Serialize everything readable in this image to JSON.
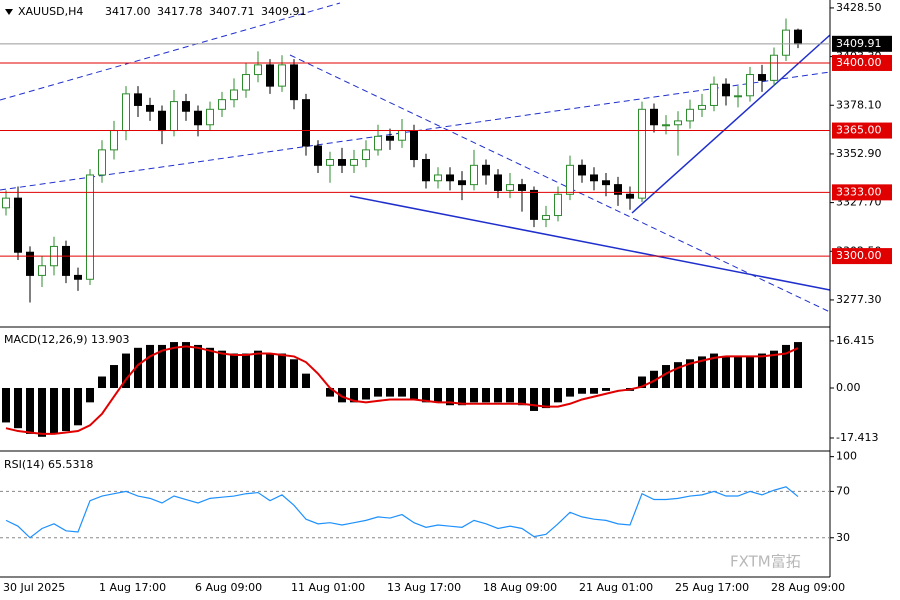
{
  "header": {
    "symbol": "XAUUSD,H4",
    "ohlc_labels": [
      "3417.00",
      "3417.78",
      "3407.71",
      "3409.91"
    ]
  },
  "watermark": "FXTM富拓",
  "chart_data": [
    {
      "type": "candlestick",
      "categories": [
        "30 Jul 2025",
        null,
        null,
        null,
        null,
        null,
        null,
        null,
        "1 Aug 17:00",
        null,
        null,
        null,
        null,
        null,
        null,
        null,
        "6 Aug 09:00",
        null,
        null,
        null,
        null,
        null,
        null,
        null,
        "11 Aug 01:00",
        null,
        null,
        null,
        null,
        null,
        null,
        null,
        "13 Aug 17:00",
        null,
        null,
        null,
        null,
        null,
        null,
        null,
        "18 Aug 09:00",
        null,
        null,
        null,
        null,
        null,
        null,
        null,
        "21 Aug 01:00",
        null,
        null,
        null,
        null,
        null,
        null,
        null,
        "25 Aug 17:00",
        null,
        null,
        null,
        null,
        null,
        null,
        null,
        "28 Aug 09:00",
        null,
        null
      ],
      "open": [
        3325,
        3330,
        3302,
        3290,
        3295,
        3305,
        3290,
        3288,
        3342,
        3355,
        3365,
        3384,
        3378,
        3375,
        3365,
        3380,
        3375,
        3368,
        3376,
        3381,
        3386,
        3394,
        3399,
        3388,
        3399,
        3381,
        3357,
        3347,
        3350,
        3347,
        3350,
        3355,
        3362,
        3360,
        3365,
        3350,
        3339,
        3342,
        3339,
        3337,
        3347,
        3342,
        3334,
        3337,
        3334,
        3319,
        3321,
        3332,
        3347,
        3342,
        3339,
        3337,
        3332,
        3330,
        3376,
        3368,
        3368,
        3370,
        3376,
        3378,
        3389,
        3383,
        3383,
        3394,
        3391,
        3404,
        3417
      ],
      "high": [
        3334,
        3336,
        3305,
        3300,
        3310,
        3308,
        3294,
        3345,
        3360,
        3370,
        3388,
        3388,
        3382,
        3378,
        3386,
        3384,
        3378,
        3380,
        3385,
        3392,
        3400,
        3406,
        3402,
        3404,
        3402,
        3384,
        3360,
        3354,
        3356,
        3355,
        3360,
        3368,
        3366,
        3371,
        3368,
        3353,
        3346,
        3346,
        3344,
        3355,
        3350,
        3345,
        3343,
        3340,
        3336,
        3326,
        3336,
        3352,
        3350,
        3346,
        3343,
        3341,
        3336,
        3380,
        3379,
        3373,
        3375,
        3381,
        3384,
        3393,
        3392,
        3388,
        3398,
        3399,
        3408,
        3423,
        3417.78
      ],
      "low": [
        3321,
        3298,
        3276,
        3284,
        3290,
        3286,
        3282,
        3285,
        3338,
        3350,
        3360,
        3372,
        3370,
        3358,
        3362,
        3370,
        3362,
        3365,
        3372,
        3377,
        3382,
        3390,
        3384,
        3385,
        3376,
        3352,
        3343,
        3338,
        3343,
        3343,
        3346,
        3352,
        3355,
        3356,
        3346,
        3335,
        3335,
        3334,
        3329,
        3334,
        3337,
        3330,
        3330,
        3323,
        3315,
        3315,
        3318,
        3329,
        3338,
        3334,
        3331,
        3326,
        3324,
        3328,
        3364,
        3363,
        3352,
        3366,
        3372,
        3375,
        3378,
        3377,
        3380,
        3385,
        3388,
        3401,
        3407.71
      ],
      "close": [
        3330,
        3302,
        3290,
        3295,
        3305,
        3290,
        3288,
        3342,
        3355,
        3365,
        3384,
        3378,
        3375,
        3365,
        3380,
        3375,
        3368,
        3376,
        3381,
        3386,
        3394,
        3399,
        3388,
        3399,
        3381,
        3357,
        3347,
        3350,
        3347,
        3350,
        3355,
        3362,
        3360,
        3365,
        3350,
        3339,
        3342,
        3339,
        3337,
        3347,
        3342,
        3334,
        3337,
        3334,
        3319,
        3321,
        3332,
        3347,
        3342,
        3339,
        3337,
        3332,
        3330,
        3376,
        3368,
        3368,
        3370,
        3376,
        3378,
        3389,
        3383,
        3383,
        3394,
        3391,
        3404,
        3417,
        3409.91
      ],
      "up_color": "#ffffff",
      "down_color": "#000000",
      "up_stroke": "#2e8b2e",
      "down_stroke": "#000000",
      "ylim": [
        3263.8,
        3432.6
      ],
      "yticks": [
        {
          "value": 3428.5,
          "label": "3428.50"
        },
        {
          "value": 3403.3,
          "label": "3403.30"
        },
        {
          "value": 3378.1,
          "label": "3378.10"
        },
        {
          "value": 3352.9,
          "label": "3352.90"
        },
        {
          "value": 3327.7,
          "label": "3327.70"
        },
        {
          "value": 3302.5,
          "label": "3302.50"
        },
        {
          "value": 3277.3,
          "label": "3277.30"
        }
      ],
      "levels": [
        {
          "value": 3400,
          "label": "3400.00"
        },
        {
          "value": 3365,
          "label": "3365.00"
        },
        {
          "value": 3333,
          "label": "3333.00"
        },
        {
          "value": 3300,
          "label": "3300.00"
        }
      ],
      "level_color": "#e00000",
      "last_price": 3409.91
    },
    {
      "type": "macd",
      "title": "MACD(12,26,9) 13.903",
      "histogram": [
        -12,
        -14,
        -16,
        -17,
        -16,
        -15,
        -13,
        -5,
        4,
        8,
        12,
        14,
        15,
        15,
        16,
        16,
        15,
        14,
        13,
        12,
        12,
        13,
        12,
        12,
        10,
        5,
        0,
        -3,
        -5,
        -5,
        -4,
        -3,
        -3,
        -3,
        -4,
        -5,
        -5,
        -6,
        -6,
        -5,
        -5,
        -5,
        -5,
        -6,
        -8,
        -7,
        -5,
        -3,
        -2,
        -2,
        -1,
        0,
        -1,
        4,
        6,
        8,
        9,
        10,
        11,
        12,
        11,
        11,
        11,
        12,
        13,
        15,
        16
      ],
      "signal": [
        -14,
        -15,
        -15.5,
        -16,
        -16,
        -15.5,
        -15,
        -13,
        -9,
        -3,
        3,
        8,
        11,
        13,
        14,
        14.5,
        14,
        13,
        12,
        11.5,
        11.5,
        12,
        12,
        11.5,
        11,
        9,
        5,
        0,
        -3,
        -4.5,
        -5,
        -4.5,
        -4,
        -4,
        -4,
        -4.5,
        -5,
        -5,
        -5.5,
        -5.5,
        -5.5,
        -5.5,
        -5.5,
        -5.5,
        -6,
        -6.5,
        -6.5,
        -5.5,
        -4,
        -3,
        -2,
        -1,
        -0.5,
        0.5,
        2.5,
        5,
        7,
        8.5,
        9.5,
        10.5,
        11,
        11,
        11,
        11,
        11.5,
        12,
        13.9
      ],
      "color": "#000000",
      "signal_color": "#e00000",
      "ylim": [
        -21.6,
        20.9
      ],
      "yticks": [
        16.415,
        {
          "value": 0,
          "label": "0.00"
        },
        -17.413
      ]
    },
    {
      "type": "rsi",
      "title": "RSI(14) 65.5318",
      "values": [
        45,
        40,
        30,
        38,
        42,
        36,
        35,
        62,
        66,
        68,
        70,
        66,
        64,
        60,
        66,
        63,
        60,
        64,
        65,
        66,
        68,
        69,
        62,
        67,
        58,
        46,
        42,
        43,
        41,
        43,
        45,
        48,
        47,
        50,
        43,
        39,
        41,
        40,
        39,
        45,
        42,
        38,
        40,
        38,
        31,
        33,
        42,
        52,
        48,
        46,
        45,
        42,
        41,
        68,
        63,
        63,
        64,
        66,
        67,
        70,
        66,
        66,
        70,
        67,
        71,
        74,
        65.5318
      ],
      "color": "#1e90ff",
      "ylim": [
        -3,
        104
      ],
      "yticks": [
        100,
        70,
        30
      ],
      "dashed_ticks": [
        70,
        30
      ]
    }
  ]
}
